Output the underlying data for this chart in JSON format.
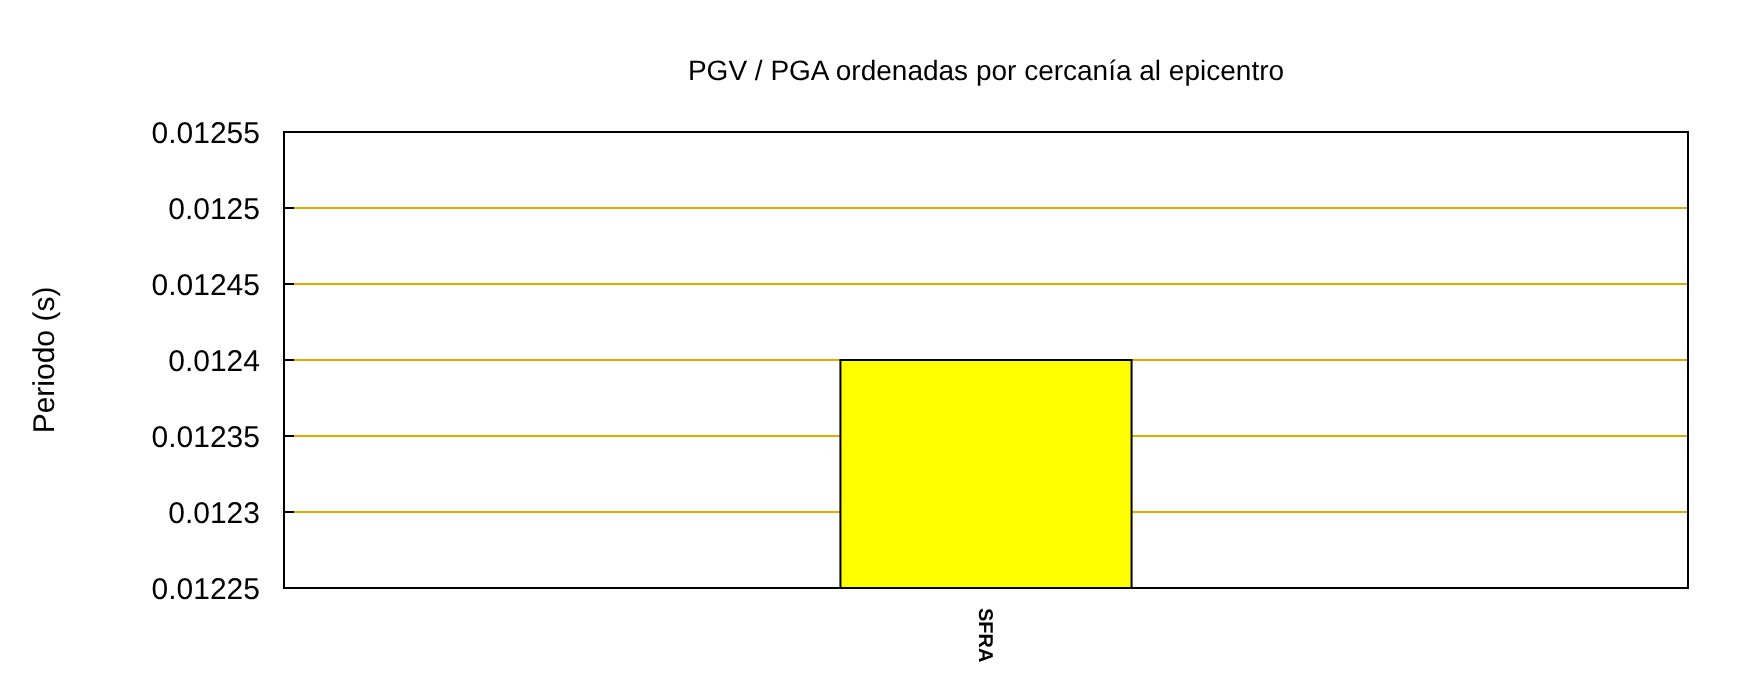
{
  "chart_data": {
    "type": "bar",
    "title": "PGV / PGA ordenadas por cercanía al epicentro",
    "ylabel": "Periodo (s)",
    "categories": [
      "SFRA"
    ],
    "values": [
      0.0124
    ],
    "color": "#ffff00",
    "ylim": [
      0.01225,
      0.01255
    ],
    "yticks": [
      0.01225,
      0.0123,
      0.01235,
      0.0124,
      0.01245,
      0.0125,
      0.01255
    ],
    "grid": "y"
  }
}
